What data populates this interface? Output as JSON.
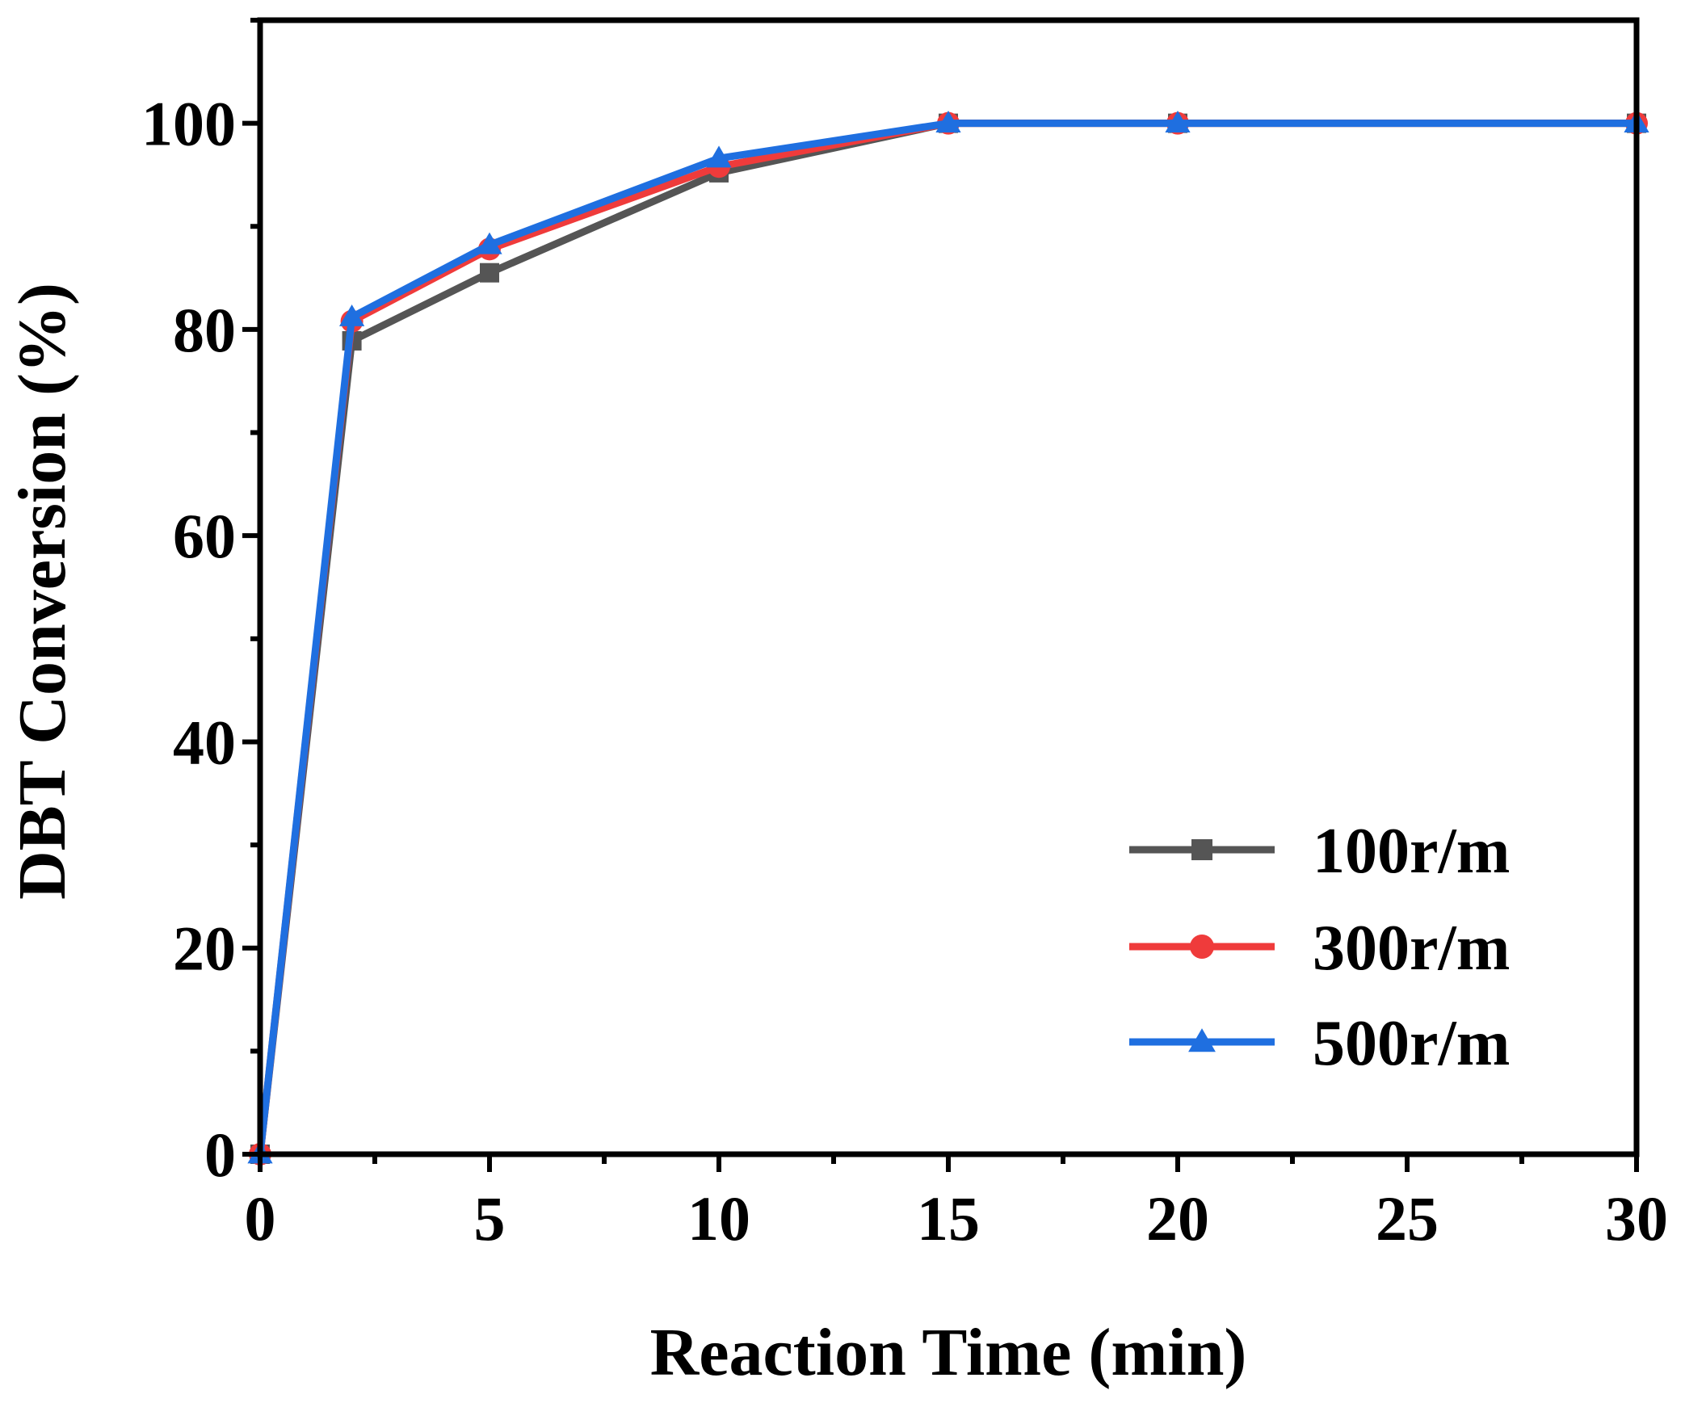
{
  "chart_data": {
    "type": "line",
    "title": "",
    "xlabel": "Reaction Time (min)",
    "ylabel": "DBT Conversion (%)",
    "xlim": [
      0,
      30
    ],
    "ylim": [
      0,
      110
    ],
    "xticks": [
      0,
      5,
      10,
      15,
      20,
      25,
      30
    ],
    "yticks": [
      0,
      20,
      40,
      60,
      80,
      100
    ],
    "xtick_labels": [
      "0",
      "5",
      "10",
      "15",
      "20",
      "25",
      "30"
    ],
    "ytick_labels": [
      "0",
      "20",
      "40",
      "60",
      "80",
      "100"
    ],
    "grid": false,
    "legend_position": "bottom-right",
    "series": [
      {
        "name": "100r/m",
        "color": "#555555",
        "marker": "square",
        "x": [
          0,
          2,
          5,
          10,
          15,
          20,
          30
        ],
        "y": [
          0,
          78.9,
          85.5,
          95.2,
          100,
          100,
          100
        ]
      },
      {
        "name": "300r/m",
        "color": "#ef3b3b",
        "marker": "circle",
        "x": [
          0,
          2,
          5,
          10,
          15,
          20,
          30
        ],
        "y": [
          0,
          80.8,
          87.8,
          95.8,
          100,
          100,
          100
        ]
      },
      {
        "name": "500r/m",
        "color": "#1f6fe0",
        "marker": "triangle",
        "x": [
          0,
          2,
          5,
          10,
          15,
          20,
          30
        ],
        "y": [
          0,
          81.2,
          88.2,
          96.6,
          100,
          100,
          100
        ]
      }
    ]
  }
}
